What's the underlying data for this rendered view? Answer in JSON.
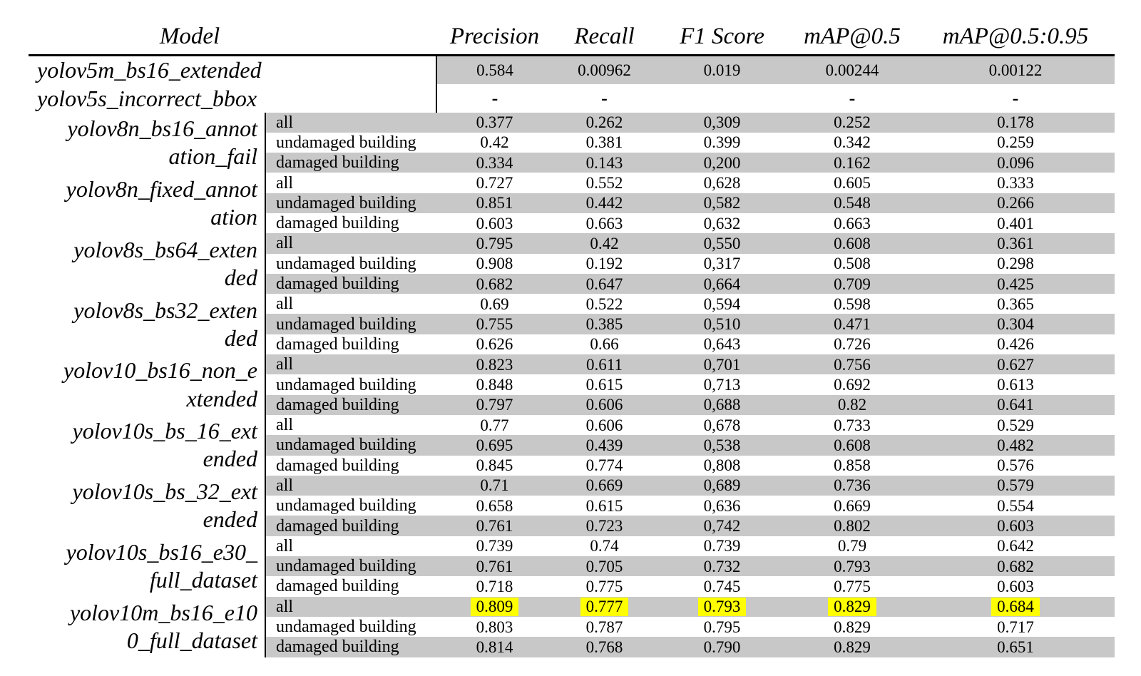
{
  "colors": {
    "stripe": "#c8c8c8",
    "highlight": "#ffff00"
  },
  "table": {
    "headers": {
      "model": "Model",
      "precision": "Precision",
      "recall": "Recall",
      "f1": "F1 Score",
      "map50": "mAP@0.5",
      "map5095": "mAP@0.5:0.95"
    },
    "simple_rows": [
      {
        "model": "yolov5m_bs16_extended",
        "values": [
          "0.584",
          "0.00962",
          "0.019",
          "0.00244",
          "0.00122"
        ]
      },
      {
        "model": "yolov5s_incorrect_bbox",
        "values": [
          "-",
          "-",
          "",
          "-",
          "-"
        ]
      }
    ],
    "groups": [
      {
        "model_lines": [
          "yolov8n_bs16_annot",
          "ation_fail"
        ],
        "rows": [
          {
            "label": "all",
            "values": [
              "0.377",
              "0.262",
              "0,309",
              "0.252",
              "0.178"
            ]
          },
          {
            "label": "undamaged building",
            "values": [
              "0.42",
              "0.381",
              "0.399",
              "0.342",
              "0.259"
            ]
          },
          {
            "label": "damaged building",
            "values": [
              "0.334",
              "0.143",
              "0,200",
              "0.162",
              "0.096"
            ]
          }
        ]
      },
      {
        "model_lines": [
          "yolov8n_fixed_annot",
          "ation"
        ],
        "rows": [
          {
            "label": "all",
            "values": [
              "0.727",
              "0.552",
              "0,628",
              "0.605",
              "0.333"
            ]
          },
          {
            "label": "undamaged building",
            "values": [
              "0.851",
              "0.442",
              "0,582",
              "0.548",
              "0.266"
            ]
          },
          {
            "label": "damaged building",
            "values": [
              "0.603",
              "0.663",
              "0,632",
              "0.663",
              "0.401"
            ]
          }
        ]
      },
      {
        "model_lines": [
          "yolov8s_bs64_exten",
          "ded"
        ],
        "rows": [
          {
            "label": "all",
            "values": [
              "0.795",
              "0.42",
              "0,550",
              "0.608",
              "0.361"
            ]
          },
          {
            "label": "undamaged building",
            "values": [
              "0.908",
              "0.192",
              "0,317",
              "0.508",
              "0.298"
            ]
          },
          {
            "label": "damaged building",
            "values": [
              "0.682",
              "0.647",
              "0,664",
              "0.709",
              "0.425"
            ]
          }
        ]
      },
      {
        "model_lines": [
          "yolov8s_bs32_exten",
          "ded"
        ],
        "rows": [
          {
            "label": "all",
            "values": [
              "0.69",
              "0.522",
              "0,594",
              "0.598",
              "0.365"
            ]
          },
          {
            "label": "undamaged building",
            "values": [
              "0.755",
              "0.385",
              "0,510",
              "0.471",
              "0.304"
            ]
          },
          {
            "label": "damaged building",
            "values": [
              "0.626",
              "0.66",
              "0,643",
              "0.726",
              "0.426"
            ]
          }
        ]
      },
      {
        "model_lines": [
          "yolov10_bs16_non_e",
          "xtended"
        ],
        "rows": [
          {
            "label": "all",
            "values": [
              "0.823",
              "0.611",
              "0,701",
              "0.756",
              "0.627"
            ]
          },
          {
            "label": "undamaged building",
            "values": [
              "0.848",
              "0.615",
              "0,713",
              "0.692",
              "0.613"
            ]
          },
          {
            "label": "damaged building",
            "values": [
              "0.797",
              "0.606",
              "0,688",
              "0.82",
              "0.641"
            ]
          }
        ]
      },
      {
        "model_lines": [
          "yolov10s_bs_16_ext",
          "ended"
        ],
        "rows": [
          {
            "label": "all",
            "values": [
              "0.77",
              "0.606",
              "0,678",
              "0.733",
              "0.529"
            ]
          },
          {
            "label": "undamaged building",
            "values": [
              "0.695",
              "0.439",
              "0,538",
              "0.608",
              "0.482"
            ]
          },
          {
            "label": "damaged building",
            "values": [
              "0.845",
              "0.774",
              "0,808",
              "0.858",
              "0.576"
            ]
          }
        ]
      },
      {
        "model_lines": [
          "yolov10s_bs_32_ext",
          "ended"
        ],
        "rows": [
          {
            "label": "all",
            "values": [
              "0.71",
              "0.669",
              "0,689",
              "0.736",
              "0.579"
            ]
          },
          {
            "label": "undamaged building",
            "values": [
              "0.658",
              "0.615",
              "0,636",
              "0.669",
              "0.554"
            ]
          },
          {
            "label": "damaged building",
            "values": [
              "0.761",
              "0.723",
              "0,742",
              "0.802",
              "0.603"
            ]
          }
        ]
      },
      {
        "model_lines": [
          "yolov10s_bs16_e30_",
          "full_dataset"
        ],
        "rows": [
          {
            "label": "all",
            "values": [
              "0.739",
              "0.74",
              "0.739",
              "0.79",
              "0.642"
            ]
          },
          {
            "label": "undamaged building",
            "values": [
              "0.761",
              "0.705",
              "0.732",
              "0.793",
              "0.682"
            ]
          },
          {
            "label": "damaged building",
            "values": [
              "0.718",
              "0.775",
              "0.745",
              "0.775",
              "0.603"
            ]
          }
        ]
      },
      {
        "model_lines": [
          "yolov10m_bs16_e10",
          "0_full_dataset"
        ],
        "rows": [
          {
            "label": "all",
            "highlighted": true,
            "values": [
              "0.809",
              "0.777",
              "0.793",
              "0.829",
              "0.684"
            ]
          },
          {
            "label": "undamaged building",
            "values": [
              "0.803",
              "0.787",
              "0.795",
              "0.829",
              "0.717"
            ]
          },
          {
            "label": "damaged building",
            "values": [
              "0.814",
              "0.768",
              "0.790",
              "0.829",
              "0.651"
            ]
          }
        ]
      }
    ]
  }
}
